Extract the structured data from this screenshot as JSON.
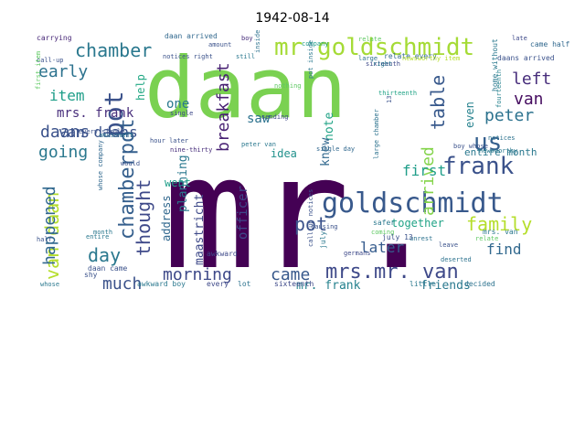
{
  "title": "1942-08-14",
  "chart_data": {
    "type": "wordcloud",
    "title": "1942-08-14",
    "background": "#ffffff",
    "colormap": "viridis",
    "words": [
      {
        "text": "mr.",
        "color": "#440154"
      },
      {
        "text": "daan",
        "color": "#7ad151"
      },
      {
        "text": "goldschmidt",
        "color": "#38598c"
      },
      {
        "text": "mr goldschmidt",
        "color": "#a5db36"
      },
      {
        "text": "frank",
        "color": "#3b528b"
      },
      {
        "text": "mrs.mr. van",
        "color": "#3e4989"
      },
      {
        "text": "chamber",
        "color": "#2a788e"
      },
      {
        "text": "pot",
        "color": "#3b528b"
      },
      {
        "text": "breakfast",
        "color": "#482173"
      },
      {
        "text": "van daan",
        "color": "#b5de2b"
      },
      {
        "text": "us",
        "color": "#355f8d"
      },
      {
        "text": "family",
        "color": "#b5de2b"
      },
      {
        "text": "morning",
        "color": "#3e4989"
      },
      {
        "text": "came",
        "color": "#38598c"
      },
      {
        "text": "van daans",
        "color": "#3b528b"
      },
      {
        "text": "chamberpot",
        "color": "#355f8d"
      },
      {
        "text": "daans",
        "color": "#3b528b"
      },
      {
        "text": "early",
        "color": "#2c728e"
      },
      {
        "text": "item",
        "color": "#1f9e89"
      },
      {
        "text": "going",
        "color": "#2a788e"
      },
      {
        "text": "thought",
        "color": "#3e4989"
      },
      {
        "text": "happened",
        "color": "#31688e"
      },
      {
        "text": "day",
        "color": "#2a788e"
      },
      {
        "text": "much",
        "color": "#3b528b"
      },
      {
        "text": "left",
        "color": "#472d7b"
      },
      {
        "text": "van",
        "color": "#470e61"
      },
      {
        "text": "peter",
        "color": "#2c728e"
      },
      {
        "text": "table",
        "color": "#38598c"
      },
      {
        "text": "arrived",
        "color": "#84d44b"
      },
      {
        "text": "first",
        "color": "#1f9e89"
      },
      {
        "text": "find",
        "color": "#31688e"
      },
      {
        "text": "later",
        "color": "#365c8d"
      },
      {
        "text": "pot",
        "color": "#3b528b"
      },
      {
        "text": "note",
        "color": "#20a386"
      },
      {
        "text": "knew",
        "color": "#31688e"
      },
      {
        "text": "even",
        "color": "#26828e"
      },
      {
        "text": "entire month",
        "color": "#2a788e"
      },
      {
        "text": "together",
        "color": "#20a386"
      },
      {
        "text": "friends",
        "color": "#2a788e"
      },
      {
        "text": "mr. frank",
        "color": "#26828e"
      },
      {
        "text": "maastricht",
        "color": "#3e4989"
      },
      {
        "text": "officer",
        "color": "#3e4989"
      },
      {
        "text": "idea",
        "color": "#21918c"
      },
      {
        "text": "saw",
        "color": "#2c728e"
      },
      {
        "text": "one",
        "color": "#2a788e"
      },
      {
        "text": "help",
        "color": "#22a884"
      },
      {
        "text": "mrs. frank",
        "color": "#472d7b"
      },
      {
        "text": "planning",
        "color": "#2a788e"
      },
      {
        "text": "went",
        "color": "#1f9e89"
      },
      {
        "text": "address",
        "color": "#31688e"
      },
      {
        "text": "carrying",
        "color": "#482878"
      },
      {
        "text": "daan arrived",
        "color": "#31688e"
      },
      {
        "text": "amount",
        "color": "#3b528b"
      },
      {
        "text": "boy",
        "color": "#472d7b"
      },
      {
        "text": "inside",
        "color": "#2c728e"
      },
      {
        "text": "company",
        "color": "#1f9e89"
      },
      {
        "text": "relate",
        "color": "#5ec962"
      },
      {
        "text": "late",
        "color": "#3e4989"
      },
      {
        "text": "came half",
        "color": "#31688e"
      },
      {
        "text": "call-up",
        "color": "#3b528b"
      },
      {
        "text": "notices right",
        "color": "#3b528b"
      },
      {
        "text": "still",
        "color": "#2a788e"
      },
      {
        "text": "relate every",
        "color": "#31688e"
      },
      {
        "text": "large",
        "color": "#2c728e"
      },
      {
        "text": "sixteenth",
        "color": "#3e4989"
      },
      {
        "text": "newsworthy item",
        "color": "#b5de2b"
      },
      {
        "text": "daans arrived",
        "color": "#3b528b"
      },
      {
        "text": "right",
        "color": "#2a788e"
      },
      {
        "text": "thirteenth",
        "color": "#20a386"
      },
      {
        "text": "every single",
        "color": "#3b528b"
      },
      {
        "text": "single",
        "color": "#3e4989"
      },
      {
        "text": "sending",
        "color": "#3e4989"
      },
      {
        "text": "nine-thirty",
        "color": "#472d7b"
      },
      {
        "text": "peter van",
        "color": "#2a788e"
      },
      {
        "text": "single day",
        "color": "#31688e"
      },
      {
        "text": "large chamber",
        "color": "#2c728e"
      },
      {
        "text": "boy whose",
        "color": "#3b528b"
      },
      {
        "text": "notices",
        "color": "#2c728e"
      },
      {
        "text": "hour later",
        "color": "#3b528b"
      },
      {
        "text": "would",
        "color": "#3b528b"
      },
      {
        "text": "newsworthy",
        "color": "#2a788e"
      },
      {
        "text": "whose company",
        "color": "#31688e"
      },
      {
        "text": "month",
        "color": "#2a788e"
      },
      {
        "text": "entire",
        "color": "#2a788e"
      },
      {
        "text": "call-up notices",
        "color": "#3b528b"
      },
      {
        "text": "july",
        "color": "#2a788e"
      },
      {
        "text": "causing",
        "color": "#3b528b"
      },
      {
        "text": "coming",
        "color": "#5ec962"
      },
      {
        "text": "safer",
        "color": "#2a788e"
      },
      {
        "text": "july 13",
        "color": "#3b528b"
      },
      {
        "text": "unrest",
        "color": "#2c728e"
      },
      {
        "text": "relate",
        "color": "#5ec962"
      },
      {
        "text": "mrs. van",
        "color": "#2a788e"
      },
      {
        "text": "leave",
        "color": "#3b528b"
      },
      {
        "text": "awkward",
        "color": "#3e4989"
      },
      {
        "text": "germans",
        "color": "#3e4989"
      },
      {
        "text": "deserted",
        "color": "#2c728e"
      },
      {
        "text": "daan came",
        "color": "#3b528b"
      },
      {
        "text": "shy",
        "color": "#3b528b"
      },
      {
        "text": "awkward boy",
        "color": "#2a788e"
      },
      {
        "text": "every",
        "color": "#3e4989"
      },
      {
        "text": "lot",
        "color": "#2c728e"
      },
      {
        "text": "sixteenth",
        "color": "#3e4989"
      },
      {
        "text": "little",
        "color": "#2a788e"
      },
      {
        "text": "decided",
        "color": "#2c728e"
      },
      {
        "text": "whose",
        "color": "#2a788e"
      },
      {
        "text": "half",
        "color": "#3b528b"
      },
      {
        "text": "amusement",
        "color": "#2c728e"
      },
      {
        "text": "pot inside",
        "color": "#2a788e"
      },
      {
        "text": "fourteenth",
        "color": "#26828e"
      },
      {
        "text": "first item",
        "color": "#5ec962"
      },
      {
        "text": "13",
        "color": "#3b528b"
      },
      {
        "text": "home without",
        "color": "#2a788e"
      },
      {
        "text": "nothing",
        "color": "#5ec962"
      }
    ]
  }
}
